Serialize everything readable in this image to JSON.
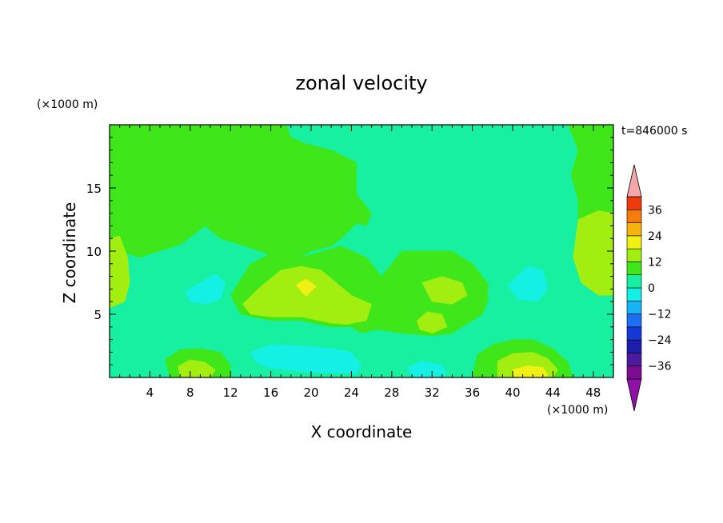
{
  "chart_data": {
    "type": "heatmap",
    "title": "zonal velocity",
    "xlabel": "X coordinate",
    "ylabel": "Z coordinate",
    "x_unit": "(×1000 m)",
    "y_unit": "(×1000 m)",
    "time_label": "t=846000 s",
    "xlim": [
      0,
      50
    ],
    "ylim": [
      0,
      20
    ],
    "x_ticks": [
      4,
      8,
      12,
      16,
      20,
      24,
      28,
      32,
      36,
      40,
      44,
      48
    ],
    "y_ticks": [
      5,
      10,
      15
    ],
    "colorbar": {
      "levels": [
        -42,
        -36,
        -30,
        -24,
        -18,
        -12,
        -6,
        0,
        6,
        12,
        18,
        24,
        30,
        36,
        42
      ],
      "tick_labels": [
        "36",
        "24",
        "12",
        "0",
        "−12",
        "−24",
        "−36"
      ],
      "tick_values": [
        36,
        24,
        12,
        0,
        -12,
        -24,
        -36
      ],
      "colors": [
        "#7b0d8e",
        "#4b1a9e",
        "#1d1fa8",
        "#1638d9",
        "#1d6ef0",
        "#16b4f5",
        "#14f0e4",
        "#16f0a0",
        "#3fe61a",
        "#a2ee10",
        "#f0f012",
        "#f6b40d",
        "#f47c0a",
        "#ee3a0c",
        "#e8200f",
        "#f4a6a8"
      ],
      "under_color": "#9010a8",
      "over_color": "#f4a6a8"
    },
    "regions": [
      {
        "level": "0 to 6",
        "polygon": [
          [
            0,
            20
          ],
          [
            17.5,
            20
          ],
          [
            18,
            19
          ],
          [
            19.5,
            18.5
          ],
          [
            22,
            18
          ],
          [
            24.5,
            17
          ],
          [
            24.5,
            14.5
          ],
          [
            26,
            13
          ],
          [
            25.5,
            12
          ],
          [
            24.5,
            12.2
          ],
          [
            23,
            11
          ],
          [
            22,
            10.4
          ],
          [
            20,
            10
          ],
          [
            18,
            9
          ],
          [
            15,
            10
          ],
          [
            13,
            10.5
          ],
          [
            11,
            11
          ],
          [
            9.5,
            12
          ],
          [
            7,
            10.5
          ],
          [
            3,
            9.5
          ],
          [
            1,
            10
          ],
          [
            0,
            11
          ]
        ]
      },
      {
        "level": "0 to 6",
        "polygon": [
          [
            45.5,
            20
          ],
          [
            50,
            20
          ],
          [
            50,
            12.5
          ],
          [
            48.5,
            13
          ],
          [
            46.5,
            12
          ],
          [
            46.5,
            14
          ],
          [
            45.8,
            16
          ],
          [
            46.5,
            18
          ]
        ]
      },
      {
        "level": "0 to 6",
        "polygon": [
          [
            19,
            9.5
          ],
          [
            23,
            10.4
          ],
          [
            25.5,
            9.5
          ],
          [
            27,
            8
          ],
          [
            28,
            9
          ],
          [
            29,
            10
          ],
          [
            31.5,
            10
          ],
          [
            34,
            10
          ],
          [
            36,
            9
          ],
          [
            38,
            7
          ],
          [
            37,
            5
          ],
          [
            36,
            4.5
          ],
          [
            35,
            4
          ],
          [
            34,
            3.5
          ],
          [
            32,
            3.3
          ],
          [
            29,
            3.5
          ],
          [
            26.5,
            3.8
          ],
          [
            25,
            3.5
          ],
          [
            24,
            4
          ],
          [
            22,
            4
          ],
          [
            19,
            4.5
          ],
          [
            16,
            4.5
          ],
          [
            13,
            5
          ],
          [
            12,
            6.5
          ],
          [
            14,
            9
          ],
          [
            16,
            9.8
          ]
        ]
      },
      {
        "level": "6 to 12",
        "polygon": [
          [
            13.2,
            5.8
          ],
          [
            15,
            7.2
          ],
          [
            17,
            8.5
          ],
          [
            19,
            8.8
          ],
          [
            21,
            8.5
          ],
          [
            22.5,
            7.5
          ],
          [
            24,
            6.5
          ],
          [
            26,
            5.8
          ],
          [
            25.5,
            4.5
          ],
          [
            23.5,
            4.2
          ],
          [
            22,
            4.3
          ],
          [
            19,
            4.8
          ],
          [
            16,
            4.8
          ],
          [
            14,
            5
          ]
        ]
      },
      {
        "level": "12 to 18",
        "polygon": [
          [
            18.5,
            7.3
          ],
          [
            19.5,
            7.8
          ],
          [
            20.5,
            7.2
          ],
          [
            19.5,
            6.4
          ]
        ]
      },
      {
        "level": "6 to 12",
        "polygon": [
          [
            30.5,
            4.5
          ],
          [
            31.5,
            5.2
          ],
          [
            33,
            5
          ],
          [
            33.5,
            4
          ],
          [
            32,
            3.5
          ],
          [
            30.8,
            3.8
          ]
        ]
      },
      {
        "level": "6 to 12",
        "polygon": [
          [
            31,
            7.5
          ],
          [
            33,
            8
          ],
          [
            35,
            7.5
          ],
          [
            35.5,
            6.5
          ],
          [
            34,
            5.8
          ],
          [
            32,
            6
          ]
        ]
      },
      {
        "level": "6 to 12",
        "polygon": [
          [
            0,
            11
          ],
          [
            1,
            11.2
          ],
          [
            1.8,
            9.5
          ],
          [
            2,
            7.5
          ],
          [
            1.5,
            6
          ],
          [
            0,
            5.5
          ]
        ]
      },
      {
        "level": "6 to 12",
        "polygon": [
          [
            46.5,
            12.5
          ],
          [
            48.5,
            13.2
          ],
          [
            50,
            13
          ],
          [
            50,
            6.5
          ],
          [
            48.5,
            6.5
          ],
          [
            46.8,
            7.5
          ],
          [
            46,
            9.5
          ]
        ]
      },
      {
        "level": "-6 to 0",
        "polygon": [
          [
            3.5,
            9.5
          ],
          [
            7,
            10.5
          ],
          [
            9.5,
            11
          ],
          [
            11.5,
            10.5
          ],
          [
            13,
            10
          ],
          [
            12,
            8
          ],
          [
            11.5,
            6
          ],
          [
            12.5,
            4.8
          ],
          [
            14,
            4.5
          ],
          [
            13,
            3
          ],
          [
            11,
            2.7
          ],
          [
            8,
            3
          ],
          [
            6,
            3
          ],
          [
            5,
            2.5
          ],
          [
            4,
            3
          ],
          [
            3,
            5.5
          ],
          [
            2.5,
            8
          ],
          [
            3,
            9
          ]
        ]
      },
      {
        "level": "-6 to 0",
        "polygon": [
          [
            38.3,
            12.5
          ],
          [
            41.5,
            12.7
          ],
          [
            43.5,
            12.5
          ],
          [
            45,
            11
          ],
          [
            45.5,
            9
          ],
          [
            45.7,
            6.5
          ],
          [
            45.2,
            5
          ],
          [
            44,
            3.8
          ],
          [
            42,
            3.5
          ],
          [
            40,
            3.8
          ],
          [
            38.5,
            4.5
          ],
          [
            37.5,
            6.5
          ],
          [
            38,
            9.5
          ]
        ]
      },
      {
        "level": "-6 to 0",
        "polygon": [
          [
            0,
            3.5
          ],
          [
            2,
            3.8
          ],
          [
            4,
            3.2
          ],
          [
            5.5,
            2.6
          ],
          [
            7,
            2.8
          ],
          [
            9,
            2.8
          ],
          [
            11.5,
            2.5
          ],
          [
            12.8,
            2
          ],
          [
            13,
            1.5
          ],
          [
            12,
            0
          ],
          [
            0,
            0
          ]
        ]
      },
      {
        "level": "-6 to 0",
        "polygon": [
          [
            12.5,
            3.2
          ],
          [
            14,
            3.8
          ],
          [
            17,
            4
          ],
          [
            20,
            3.9
          ],
          [
            23,
            3.6
          ],
          [
            25,
            3.5
          ],
          [
            27,
            2.5
          ],
          [
            28,
            0
          ],
          [
            24,
            0
          ],
          [
            20,
            0.3
          ],
          [
            16,
            0.5
          ],
          [
            13,
            0.8
          ]
        ]
      },
      {
        "level": "-6 to 0",
        "polygon": [
          [
            27.5,
            2
          ],
          [
            30,
            3
          ],
          [
            33,
            3
          ],
          [
            35,
            2.5
          ],
          [
            36,
            0.8
          ],
          [
            35,
            0
          ],
          [
            29,
            0
          ]
        ]
      },
      {
        "level": "-12 to -6",
        "polygon": [
          [
            7.5,
            6.8
          ],
          [
            9,
            7.5
          ],
          [
            10.5,
            8.2
          ],
          [
            11.5,
            7.5
          ],
          [
            11,
            6.2
          ],
          [
            9.5,
            5.8
          ],
          [
            8,
            6
          ]
        ]
      },
      {
        "level": "-12 to -6",
        "polygon": [
          [
            39.5,
            7.3
          ],
          [
            41.5,
            8.8
          ],
          [
            43,
            8.5
          ],
          [
            43.5,
            7
          ],
          [
            42.5,
            6
          ],
          [
            40.5,
            6.2
          ]
        ]
      },
      {
        "level": "-12 to -6",
        "polygon": [
          [
            14,
            2
          ],
          [
            16,
            2.6
          ],
          [
            19,
            2.5
          ],
          [
            22,
            2.3
          ],
          [
            24,
            2
          ],
          [
            25,
            1
          ],
          [
            24.5,
            0.3
          ],
          [
            20,
            0.4
          ],
          [
            16,
            0.7
          ],
          [
            14.5,
            1.2
          ]
        ]
      },
      {
        "level": "-12 to -6",
        "polygon": [
          [
            29.5,
            0.8
          ],
          [
            31,
            1.3
          ],
          [
            33,
            1
          ],
          [
            33.5,
            0.3
          ],
          [
            32,
            0
          ],
          [
            30,
            0
          ]
        ]
      },
      {
        "level": "0 to 6",
        "polygon": [
          [
            5.5,
            1.4
          ],
          [
            7,
            2.2
          ],
          [
            9,
            2.3
          ],
          [
            11,
            2
          ],
          [
            12,
            1
          ],
          [
            12,
            0
          ],
          [
            6,
            0
          ]
        ]
      },
      {
        "level": "6 to 12",
        "polygon": [
          [
            6.8,
            0.9
          ],
          [
            8,
            1.4
          ],
          [
            9.5,
            1.2
          ],
          [
            10.5,
            0.6
          ],
          [
            10,
            0
          ],
          [
            7,
            0
          ]
        ]
      },
      {
        "level": "0 to 6",
        "polygon": [
          [
            36.5,
            1.8
          ],
          [
            38,
            2.6
          ],
          [
            40,
            3
          ],
          [
            42,
            3
          ],
          [
            44,
            2.3
          ],
          [
            45.5,
            1.2
          ],
          [
            46,
            0
          ],
          [
            36,
            0
          ]
        ]
      },
      {
        "level": "6 to 12",
        "polygon": [
          [
            38.5,
            1.3
          ],
          [
            40,
            1.9
          ],
          [
            42,
            2
          ],
          [
            43.5,
            1.5
          ],
          [
            44.5,
            0.6
          ],
          [
            44,
            0
          ],
          [
            38.5,
            0
          ]
        ]
      },
      {
        "level": "12 to 18",
        "polygon": [
          [
            40,
            0.6
          ],
          [
            41.5,
            0.95
          ],
          [
            43,
            0.8
          ],
          [
            43.5,
            0.2
          ],
          [
            43,
            0
          ],
          [
            40.2,
            0
          ]
        ]
      }
    ]
  }
}
